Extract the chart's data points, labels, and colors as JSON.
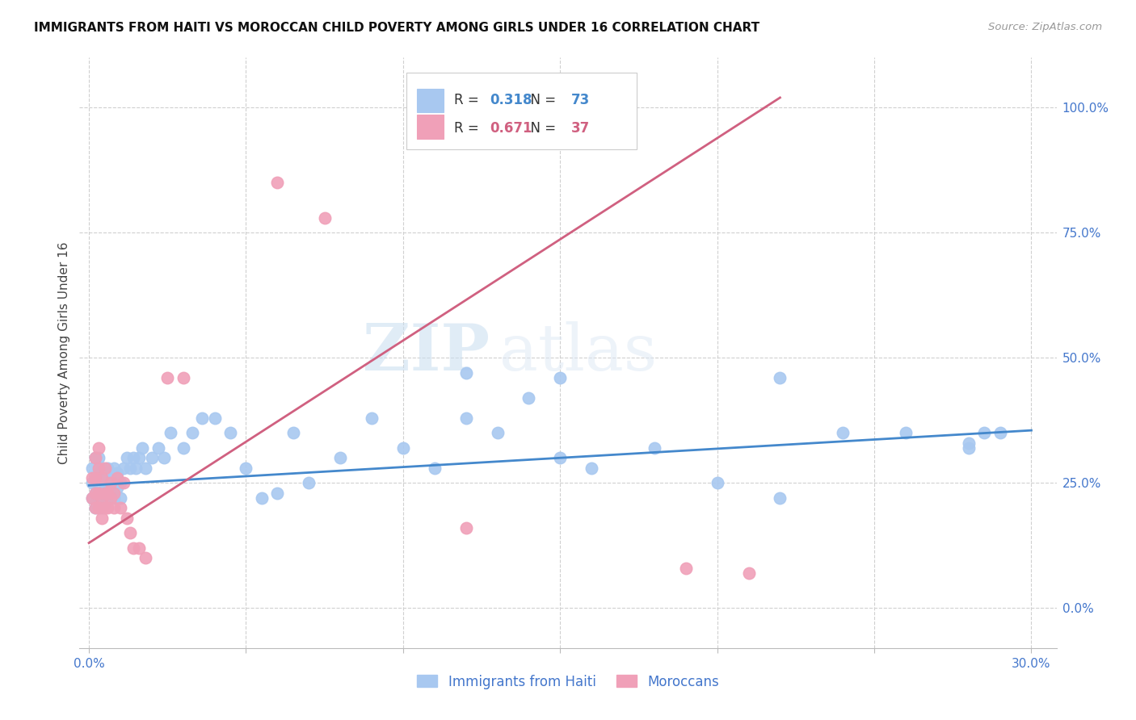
{
  "title": "IMMIGRANTS FROM HAITI VS MOROCCAN CHILD POVERTY AMONG GIRLS UNDER 16 CORRELATION CHART",
  "source": "Source: ZipAtlas.com",
  "ylabel": "Child Poverty Among Girls Under 16",
  "haiti_R": "0.318",
  "haiti_N": "73",
  "moroccan_R": "0.671",
  "moroccan_N": "37",
  "legend_label1": "Immigrants from Haiti",
  "legend_label2": "Moroccans",
  "haiti_color": "#a8c8f0",
  "moroccan_color": "#f0a0b8",
  "haiti_line_color": "#4488cc",
  "moroccan_line_color": "#d06080",
  "watermark_zip": "ZIP",
  "watermark_atlas": "atlas",
  "haiti_x": [
    0.001,
    0.001,
    0.001,
    0.002,
    0.002,
    0.002,
    0.002,
    0.003,
    0.003,
    0.003,
    0.003,
    0.004,
    0.004,
    0.004,
    0.004,
    0.005,
    0.005,
    0.005,
    0.006,
    0.006,
    0.006,
    0.007,
    0.007,
    0.008,
    0.008,
    0.008,
    0.009,
    0.009,
    0.01,
    0.01,
    0.011,
    0.012,
    0.013,
    0.014,
    0.015,
    0.016,
    0.017,
    0.018,
    0.02,
    0.022,
    0.024,
    0.026,
    0.03,
    0.033,
    0.036,
    0.04,
    0.045,
    0.05,
    0.055,
    0.06,
    0.065,
    0.07,
    0.08,
    0.09,
    0.1,
    0.11,
    0.12,
    0.13,
    0.14,
    0.15,
    0.16,
    0.18,
    0.2,
    0.22,
    0.24,
    0.26,
    0.28,
    0.285,
    0.29,
    0.12,
    0.22,
    0.28,
    0.15
  ],
  "haiti_y": [
    0.22,
    0.25,
    0.28,
    0.2,
    0.23,
    0.26,
    0.3,
    0.22,
    0.24,
    0.27,
    0.3,
    0.2,
    0.23,
    0.26,
    0.28,
    0.21,
    0.24,
    0.27,
    0.22,
    0.25,
    0.28,
    0.23,
    0.26,
    0.22,
    0.25,
    0.28,
    0.24,
    0.27,
    0.22,
    0.25,
    0.28,
    0.3,
    0.28,
    0.3,
    0.28,
    0.3,
    0.32,
    0.28,
    0.3,
    0.32,
    0.3,
    0.35,
    0.32,
    0.35,
    0.38,
    0.38,
    0.35,
    0.28,
    0.22,
    0.23,
    0.35,
    0.25,
    0.3,
    0.38,
    0.32,
    0.28,
    0.38,
    0.35,
    0.42,
    0.3,
    0.28,
    0.32,
    0.25,
    0.22,
    0.35,
    0.35,
    0.32,
    0.35,
    0.35,
    0.47,
    0.46,
    0.33,
    0.46
  ],
  "moroccan_x": [
    0.001,
    0.001,
    0.002,
    0.002,
    0.002,
    0.002,
    0.003,
    0.003,
    0.003,
    0.003,
    0.004,
    0.004,
    0.004,
    0.005,
    0.005,
    0.005,
    0.006,
    0.006,
    0.007,
    0.007,
    0.008,
    0.008,
    0.009,
    0.01,
    0.011,
    0.012,
    0.013,
    0.014,
    0.016,
    0.018,
    0.025,
    0.03,
    0.06,
    0.075,
    0.12,
    0.19,
    0.21
  ],
  "moroccan_y": [
    0.22,
    0.26,
    0.2,
    0.23,
    0.26,
    0.3,
    0.2,
    0.23,
    0.28,
    0.32,
    0.18,
    0.22,
    0.26,
    0.2,
    0.23,
    0.28,
    0.2,
    0.23,
    0.22,
    0.25,
    0.2,
    0.23,
    0.26,
    0.2,
    0.25,
    0.18,
    0.15,
    0.12,
    0.12,
    0.1,
    0.46,
    0.46,
    0.85,
    0.78,
    0.16,
    0.08,
    0.07
  ],
  "haiti_line_x": [
    0.0,
    0.3
  ],
  "haiti_line_y": [
    0.245,
    0.355
  ],
  "moroccan_line_x": [
    0.0,
    0.22
  ],
  "moroccan_line_y": [
    0.13,
    1.02
  ],
  "xlim_min": -0.003,
  "xlim_max": 0.308,
  "ylim_min": -0.08,
  "ylim_max": 1.1,
  "xtick_positions": [
    0.0,
    0.05,
    0.1,
    0.15,
    0.2,
    0.25,
    0.3
  ],
  "ytick_positions": [
    0.0,
    0.25,
    0.5,
    0.75,
    1.0
  ],
  "ytick_labels": [
    "0.0%",
    "25.0%",
    "50.0%",
    "75.0%",
    "100.0%"
  ]
}
